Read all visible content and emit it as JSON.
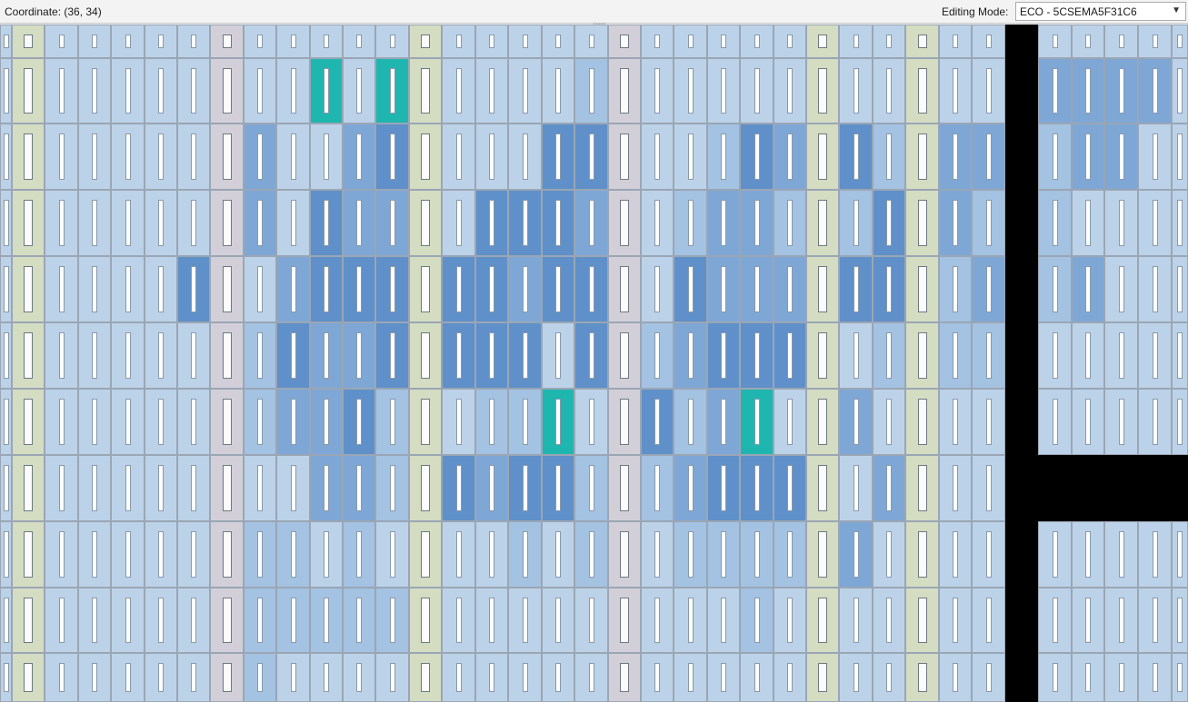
{
  "status_bar": {
    "coordinate_text": "Coordinate: (36, 34)",
    "editing_mode_label": "Editing Mode:",
    "editing_mode_value": "ECO - 5CSEMA5F31C6",
    "dropdown_icon": "chevron-down-icon"
  },
  "chip_planner": {
    "colors": {
      "empty_lab": "#bcd2e8",
      "low_util": "#a4c2e2",
      "mid_util": "#7ea7d6",
      "high_util": "#5f90c9",
      "very_high_util": "#4a80c0",
      "selected_cyan": "#1fb6b0",
      "io_column": "#d4dcc2",
      "dsp_column": "#d3cfd9",
      "blocked_region": "#000000"
    },
    "grid": {
      "rows": 11,
      "util_rows": [
        "0000000000000000000000000000000",
        "0000000000C0C00000200000000000003333",
        "00000000300342000442002433423331133",
        "0000000030433004443302332024331120",
        "0000004003444444344404333344423313",
        "000000002433444440422344440231130",
        "00000000233424022C03423C0330300",
        "00000000003320434420234440030000",
        "0000000022020000202002222230000",
        "00000000222220000000000200000000",
        "00000000200000000000000000000000"
      ]
    }
  }
}
